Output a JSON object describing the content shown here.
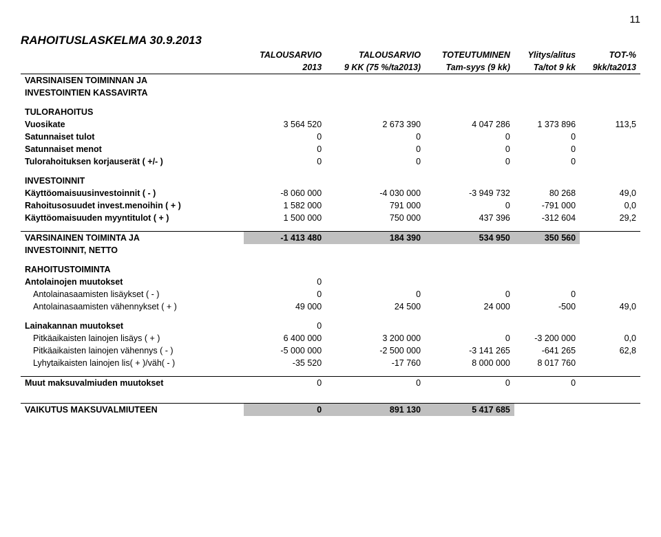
{
  "pageNumber": "11",
  "title": "RAHOITUSLASKELMA 30.9.2013",
  "colors": {
    "shade": "#c0c0c0",
    "border": "#000000",
    "text": "#000000",
    "bg": "#ffffff"
  },
  "headerRow1": [
    "",
    "TALOUSARVIO",
    "TALOUSARVIO",
    "TOTEUTUMINEN",
    "Ylitys/alitus",
    "TOT-%"
  ],
  "headerRow2": [
    "",
    "2013",
    "9 KK (75 %/ta2013)",
    "Tam-syys (9 kk)",
    "Ta/tot 9 kk",
    "9kk/ta2013"
  ],
  "sections": {
    "s1_title1": "VARSINAISEN TOIMINNAN JA",
    "s1_title2": "INVESTOINTIEN KASSAVIRTA",
    "tulorahoitus": "TULORAHOITUS",
    "rows1": [
      {
        "label": "Vuosikate",
        "bold": true,
        "v": [
          "3 564 520",
          "2 673 390",
          "4 047 286",
          "1 373 896",
          "113,5"
        ]
      },
      {
        "label": "Satunnaiset tulot",
        "bold": true,
        "v": [
          "0",
          "0",
          "0",
          "0",
          ""
        ]
      },
      {
        "label": "Satunnaiset menot",
        "bold": true,
        "v": [
          "0",
          "0",
          "0",
          "0",
          ""
        ]
      },
      {
        "label": "Tulorahoituksen korjauserät ( +/- )",
        "bold": true,
        "v": [
          "0",
          "0",
          "0",
          "0",
          ""
        ]
      }
    ],
    "investoinnit": "INVESTOINNIT",
    "rows2": [
      {
        "label": "Käyttöomaisuusinvestoinnit ( - )",
        "bold": true,
        "v": [
          "-8 060 000",
          "-4 030 000",
          "-3 949 732",
          "80 268",
          "49,0"
        ]
      },
      {
        "label": "Rahoitusosuudet invest.menoihin ( + )",
        "bold": true,
        "v": [
          "1 582 000",
          "791 000",
          "0",
          "-791 000",
          "0,0"
        ]
      },
      {
        "label": "Käyttöomaisuuden myyntitulot ( + )",
        "bold": true,
        "v": [
          "1 500 000",
          "750 000",
          "437 396",
          "-312 604",
          "29,2"
        ]
      }
    ],
    "vars_toiminta": {
      "label1": "VARSINAINEN TOIMINTA JA",
      "label2": "INVESTOINNIT, NETTO",
      "v": [
        "-1 413 480",
        "184 390",
        "534 950",
        "350 560",
        ""
      ]
    },
    "rahoitustoiminta": "RAHOITUSTOIMINTA",
    "antolainojen": {
      "label": "Antolainojen muutokset",
      "v": [
        "0",
        "",
        "",
        "",
        ""
      ]
    },
    "rows3": [
      {
        "label": "Antolainasaamisten lisäykset ( - )",
        "indent": true,
        "v": [
          "0",
          "0",
          "0",
          "0",
          ""
        ]
      },
      {
        "label": "Antolainasaamisten vähennykset ( + )",
        "indent": true,
        "v": [
          "49 000",
          "24 500",
          "24 000",
          "-500",
          "49,0"
        ]
      }
    ],
    "lainakannan": {
      "label": "Lainakannan muutokset",
      "v": [
        "0",
        "",
        "",
        "",
        ""
      ]
    },
    "rows4": [
      {
        "label": "Pitkäaikaisten lainojen lisäys ( + )",
        "indent": true,
        "v": [
          "6 400 000",
          "3 200 000",
          "0",
          "-3 200 000",
          "0,0"
        ]
      },
      {
        "label": "Pitkäaikaisten lainojen vähennys ( - )",
        "indent": true,
        "v": [
          "-5 000 000",
          "-2 500 000",
          "-3 141 265",
          "-641 265",
          "62,8"
        ]
      },
      {
        "label": "Lyhytaikaisten lainojen lis( + )/väh( - )",
        "indent": true,
        "v": [
          "-35 520",
          "-17 760",
          "8 000 000",
          "8 017 760",
          ""
        ]
      }
    ],
    "muut": {
      "label": "Muut maksuvalmiuden muutokset",
      "v": [
        "0",
        "0",
        "0",
        "0",
        ""
      ]
    },
    "vaikutus": {
      "label": "VAIKUTUS MAKSUVALMIUTEEN",
      "v": [
        "0",
        "891 130",
        "5 417 685",
        "",
        ""
      ]
    }
  }
}
